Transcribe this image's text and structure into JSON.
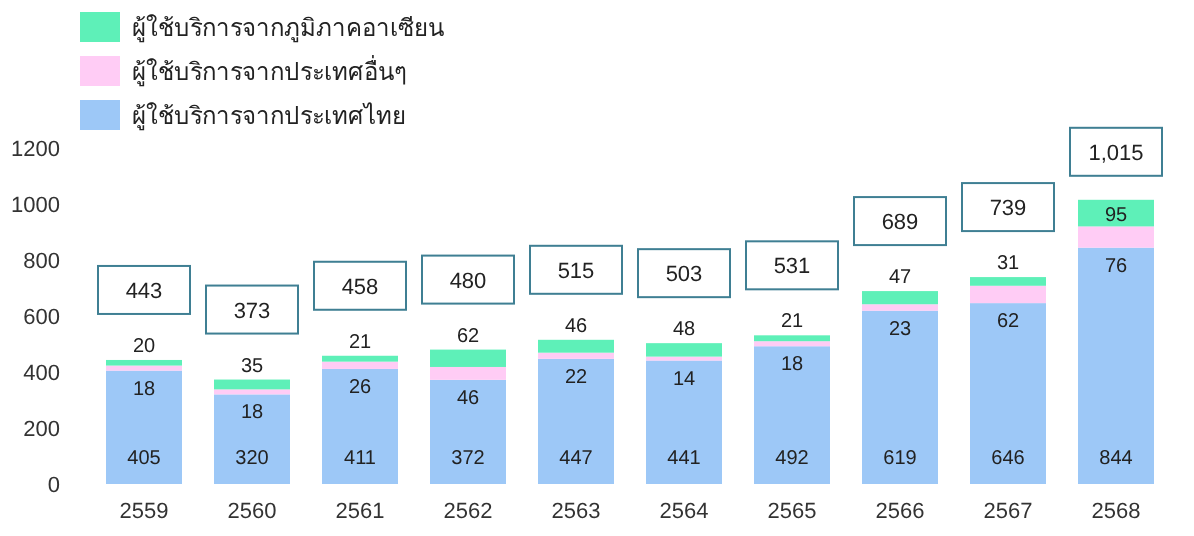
{
  "chart_data": {
    "type": "bar",
    "stacked": true,
    "categories": [
      "2559",
      "2560",
      "2561",
      "2562",
      "2563",
      "2564",
      "2565",
      "2566",
      "2567",
      "2568"
    ],
    "series": [
      {
        "name": "ผู้ใช้บริการจากประเทศไทย",
        "color": "#9dc8f7",
        "values": [
          405,
          320,
          411,
          372,
          447,
          441,
          492,
          619,
          646,
          844
        ]
      },
      {
        "name": "ผู้ใช้บริการจากประเทศอื่นๆ",
        "color": "#ffccf5",
        "values": [
          18,
          18,
          26,
          46,
          22,
          14,
          18,
          23,
          62,
          76
        ]
      },
      {
        "name": "ผู้ใช้บริการจากภูมิภาคอาเซียน",
        "color": "#5ef0b8",
        "values": [
          20,
          35,
          21,
          62,
          46,
          48,
          21,
          47,
          31,
          95
        ]
      }
    ],
    "totals": [
      "443",
      "373",
      "458",
      "480",
      "515",
      "503",
      "531",
      "689",
      "739",
      "1,015"
    ],
    "data_labels": true,
    "ylim": [
      0,
      1200
    ],
    "yticks": [
      0,
      200,
      400,
      600,
      800,
      1000,
      1200
    ],
    "legend": "top left"
  }
}
